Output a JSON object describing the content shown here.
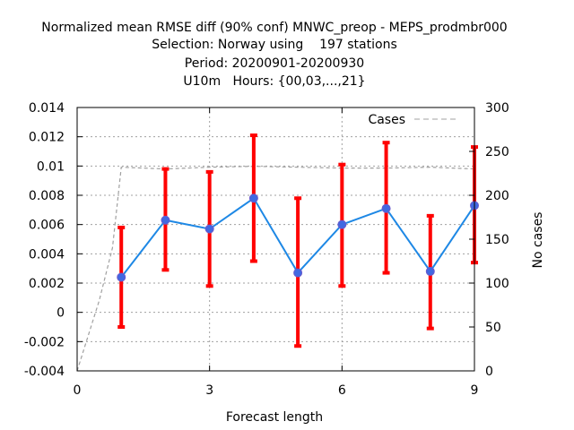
{
  "chart_data": {
    "type": "line",
    "title_lines": [
      "Normalized mean RMSE diff (90% conf) MNWC_preop - MEPS_prodmbr000",
      "Selection: Norway using    197 stations",
      "Period: 20200901-20200930",
      "U10m   Hours: {00,03,...,21}"
    ],
    "xlabel": "Forecast length",
    "ylabel": "",
    "y2label": "No cases",
    "xlim": [
      0,
      9
    ],
    "ylim": [
      -0.004,
      0.014
    ],
    "y2lim": [
      0,
      300
    ],
    "x_ticks": [
      0,
      3,
      6,
      9
    ],
    "x_tick_labels": [
      "0",
      "3",
      "6",
      "9"
    ],
    "y_ticks": [
      -0.004,
      -0.002,
      0,
      0.002,
      0.004,
      0.006,
      0.008,
      0.01,
      0.012,
      0.014
    ],
    "y_tick_labels": [
      "-0.004",
      "-0.002",
      "0",
      "0.002",
      "0.004",
      "0.006",
      "0.008",
      "0.01",
      "0.012",
      "0.014"
    ],
    "y2_ticks": [
      0,
      50,
      100,
      150,
      200,
      250,
      300
    ],
    "y2_tick_labels": [
      "0",
      "50",
      "100",
      "150",
      "200",
      "250",
      "300"
    ],
    "grid": true,
    "legend_position": "top-right",
    "series": [
      {
        "name": "",
        "kind": "line-errorbars",
        "x": [
          1,
          2,
          3,
          4,
          5,
          6,
          7,
          8,
          9
        ],
        "y": [
          0.0024,
          0.0063,
          0.0057,
          0.0078,
          0.0027,
          0.006,
          0.0071,
          0.0028,
          0.0073
        ],
        "y_low": [
          -0.001,
          0.0029,
          0.0018,
          0.0035,
          -0.0023,
          0.0018,
          0.0027,
          -0.0011,
          0.0034
        ],
        "y_high": [
          0.0058,
          0.0098,
          0.0096,
          0.0121,
          0.0078,
          0.0101,
          0.0116,
          0.0066,
          0.0113
        ],
        "line_color": "#1e88e5",
        "marker_color": "#4169e1",
        "errorbar_color": "#ff0000"
      },
      {
        "name": "Cases",
        "kind": "dashed-line",
        "axis": "y2",
        "x": [
          0,
          0.5,
          0.8,
          1,
          2,
          3,
          4,
          5,
          6,
          7,
          8,
          9
        ],
        "y": [
          0,
          80,
          140,
          232,
          230,
          232,
          233,
          232,
          231,
          231,
          232,
          230
        ],
        "color": "#a0a0a0"
      }
    ]
  }
}
